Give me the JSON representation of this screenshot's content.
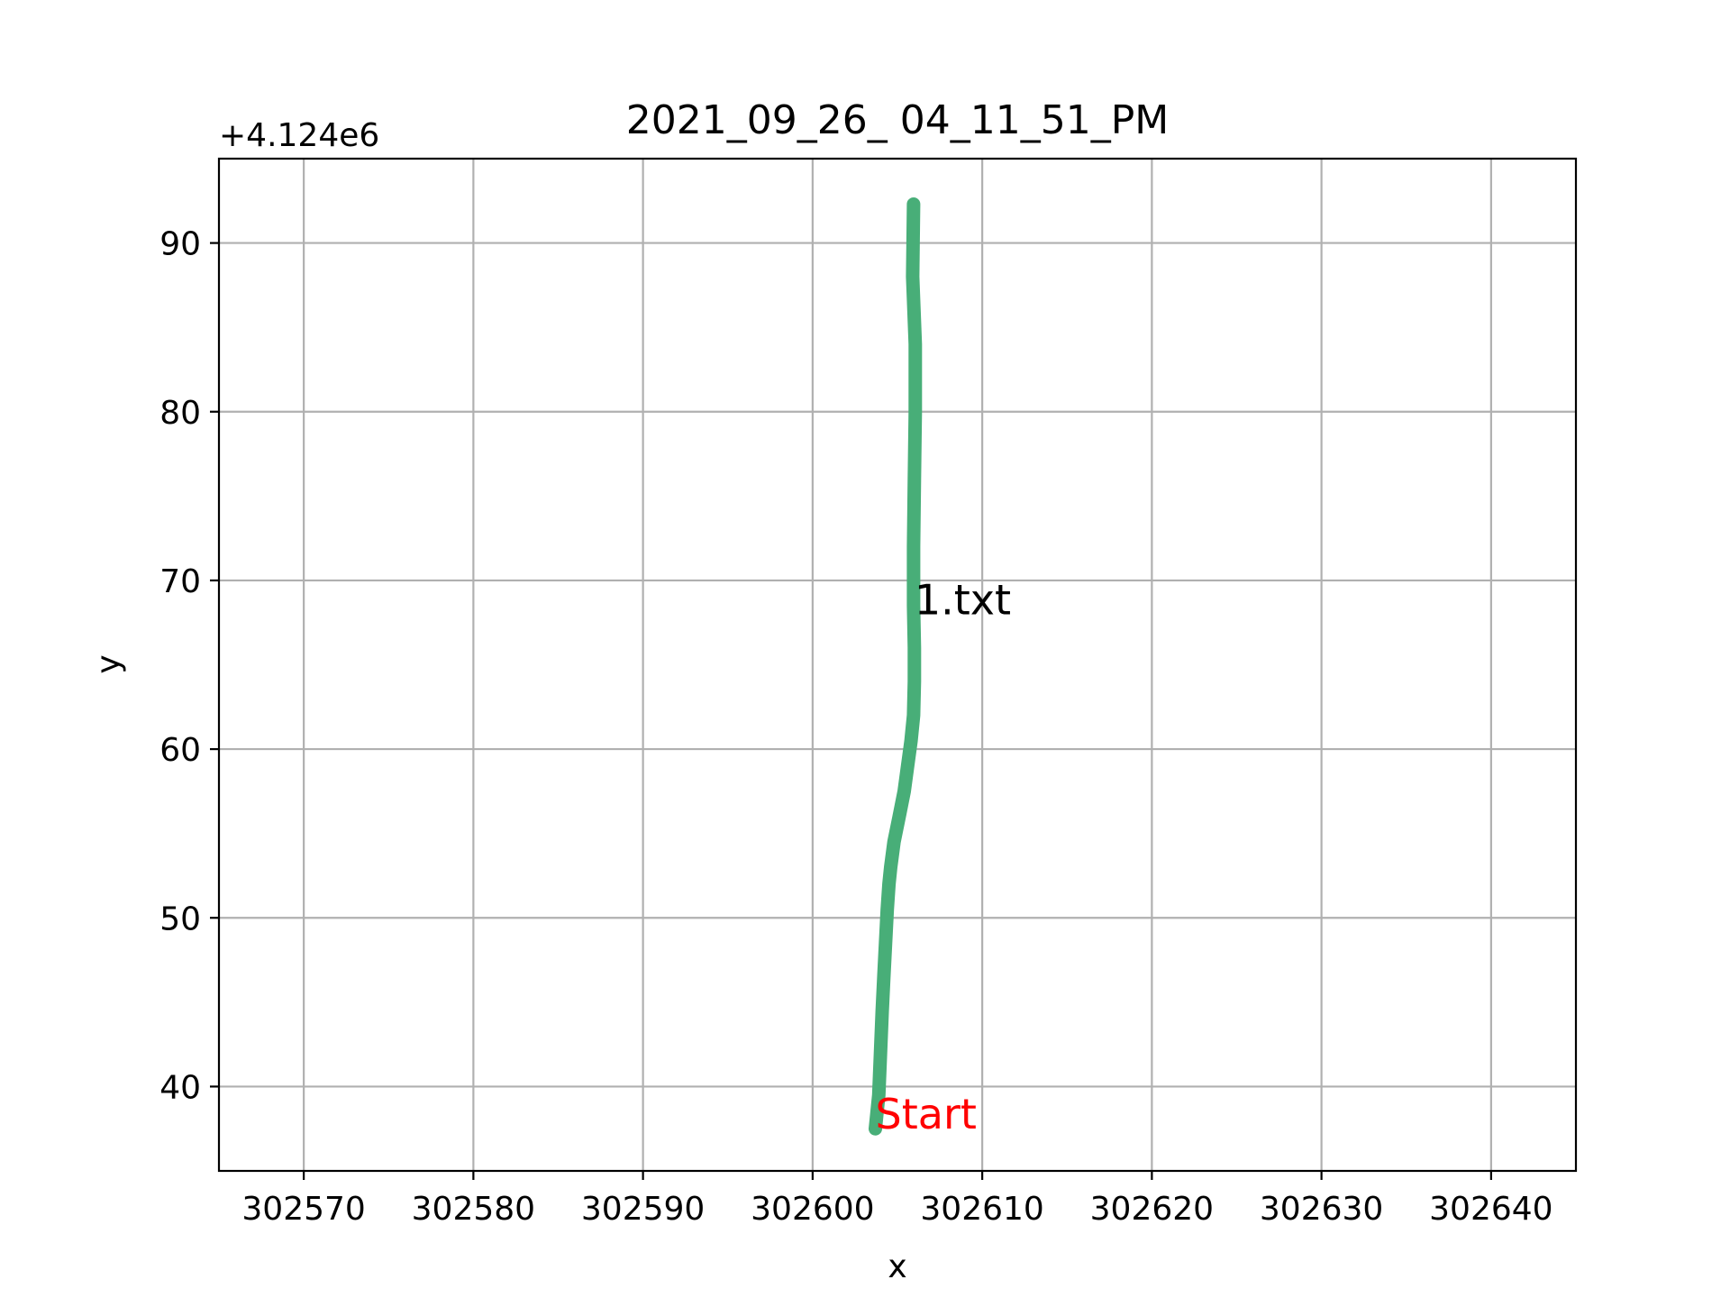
{
  "chart_data": {
    "type": "line",
    "title": "2021_09_26_ 04_11_51_PM",
    "xlabel": "x",
    "ylabel": "y",
    "y_offset_label": "+4.124e6",
    "xlim": [
      302565,
      302645
    ],
    "ylim": [
      35,
      95
    ],
    "grid": true,
    "x_ticks": [
      {
        "value": 302570,
        "label": "302570"
      },
      {
        "value": 302580,
        "label": "302580"
      },
      {
        "value": 302590,
        "label": "302590"
      },
      {
        "value": 302600,
        "label": "302600"
      },
      {
        "value": 302610,
        "label": "302610"
      },
      {
        "value": 302620,
        "label": "302620"
      },
      {
        "value": 302630,
        "label": "302630"
      },
      {
        "value": 302640,
        "label": "302640"
      }
    ],
    "y_ticks": [
      {
        "value": 40,
        "label": "40"
      },
      {
        "value": 50,
        "label": "50"
      },
      {
        "value": 60,
        "label": "60"
      },
      {
        "value": 70,
        "label": "70"
      },
      {
        "value": 80,
        "label": "80"
      },
      {
        "value": 90,
        "label": "90"
      }
    ],
    "series": [
      {
        "name": "1.txt",
        "color": "#48ae78",
        "x": [
          302603.7,
          302603.9,
          302604.0,
          302604.1,
          302604.2,
          302604.3,
          302604.4,
          302604.5,
          302604.6,
          302604.8,
          302605.1,
          302605.4,
          302605.6,
          302605.8,
          302605.95,
          302606.0,
          302606.0,
          302605.95,
          302605.95,
          302606.0,
          302606.05,
          302606.05,
          302605.9,
          302605.95
        ],
        "y": [
          37.5,
          39.5,
          42.0,
          44.5,
          46.5,
          48.5,
          50.5,
          52.0,
          53.0,
          54.5,
          56.0,
          57.5,
          59.0,
          60.5,
          62.0,
          64.0,
          66.0,
          68.5,
          72.0,
          76.0,
          80.0,
          84.0,
          88.0,
          92.3
        ]
      }
    ],
    "annotations": [
      {
        "text": "1.txt",
        "x": 302606.0,
        "y": 68.0,
        "color": "#000000"
      },
      {
        "text": "Start",
        "x": 302603.7,
        "y": 37.5,
        "color": "#ff0000"
      }
    ]
  }
}
